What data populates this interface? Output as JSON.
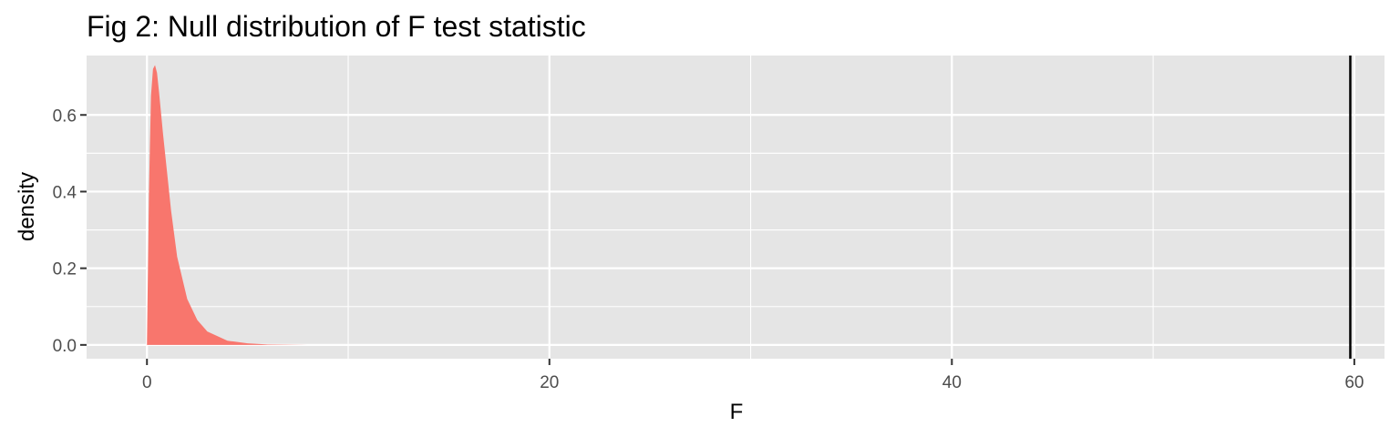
{
  "chart_data": {
    "type": "area",
    "title": "Fig 2: Null distribution of F test statistic",
    "xlabel": "F",
    "ylabel": "density",
    "xlim": [
      -3,
      61.5
    ],
    "ylim": [
      -0.036,
      0.755
    ],
    "x_ticks": [
      0,
      20,
      40,
      60
    ],
    "x_tick_labels": [
      "0",
      "20",
      "40",
      "60"
    ],
    "y_ticks": [
      0.0,
      0.2,
      0.4,
      0.6
    ],
    "y_tick_labels": [
      "0.0",
      "0.2",
      "0.4",
      "0.6"
    ],
    "grid": true,
    "legend": "none",
    "series": [
      {
        "x": [
          0.0,
          0.1,
          0.2,
          0.3,
          0.4,
          0.5,
          0.6,
          0.8,
          1.0,
          1.2,
          1.5,
          2.0,
          2.5,
          3.0,
          4.0,
          5.0,
          6.0,
          8.0
        ],
        "y": [
          0.0,
          0.4,
          0.65,
          0.72,
          0.73,
          0.71,
          0.66,
          0.55,
          0.45,
          0.35,
          0.23,
          0.12,
          0.065,
          0.035,
          0.011,
          0.004,
          0.0012,
          0.0
        ],
        "fill": "#F8766D"
      }
    ],
    "vline": {
      "x": 59.8,
      "color": "#000000"
    },
    "colors": {
      "panel": "#E5E5E5",
      "grid": "#FFFFFF",
      "fill": "#F8766D",
      "vline": "#000000",
      "tick_text": "#4D4D4D",
      "title_text": "#000000"
    }
  }
}
